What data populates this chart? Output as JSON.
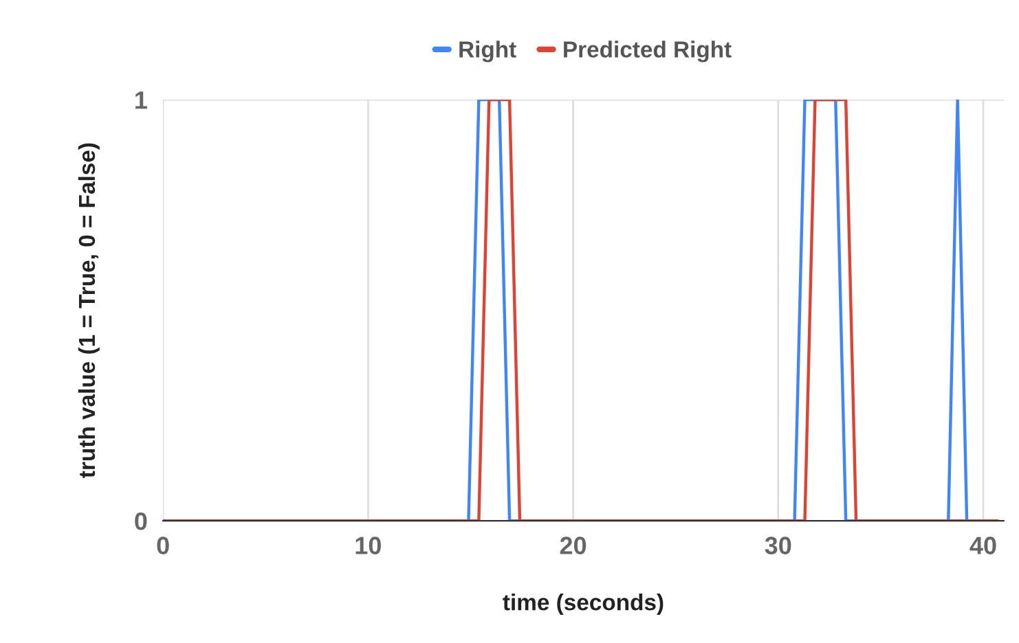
{
  "chart_data": {
    "type": "line",
    "xlabel": "time (seconds)",
    "ylabel": "truth value (1 = True, 0 = False)",
    "series": [
      {
        "name": "Right",
        "color": "#4285f4",
        "x": [
          0,
          14.9,
          15.4,
          16.4,
          16.9,
          30.8,
          31.3,
          32.8,
          33.3,
          38.3,
          38.75,
          39.2,
          40.7
        ],
        "values": [
          0,
          0,
          1,
          1,
          0,
          0,
          1,
          1,
          0,
          0,
          1,
          0,
          0
        ]
      },
      {
        "name": "Predicted Right",
        "color": "#db4437",
        "x": [
          0,
          15.4,
          15.9,
          16.9,
          17.4,
          31.3,
          31.8,
          33.3,
          33.8,
          40.7
        ],
        "values": [
          0,
          0,
          1,
          1,
          0,
          0,
          1,
          1,
          0,
          0
        ]
      }
    ],
    "xlim": [
      0,
      41
    ],
    "xticks": [
      0,
      10,
      20,
      30,
      40
    ],
    "ylim": [
      0,
      1
    ],
    "yticks": [
      0,
      1
    ],
    "grid": true,
    "legend": "top",
    "line_style": "solid",
    "marker": "none"
  }
}
